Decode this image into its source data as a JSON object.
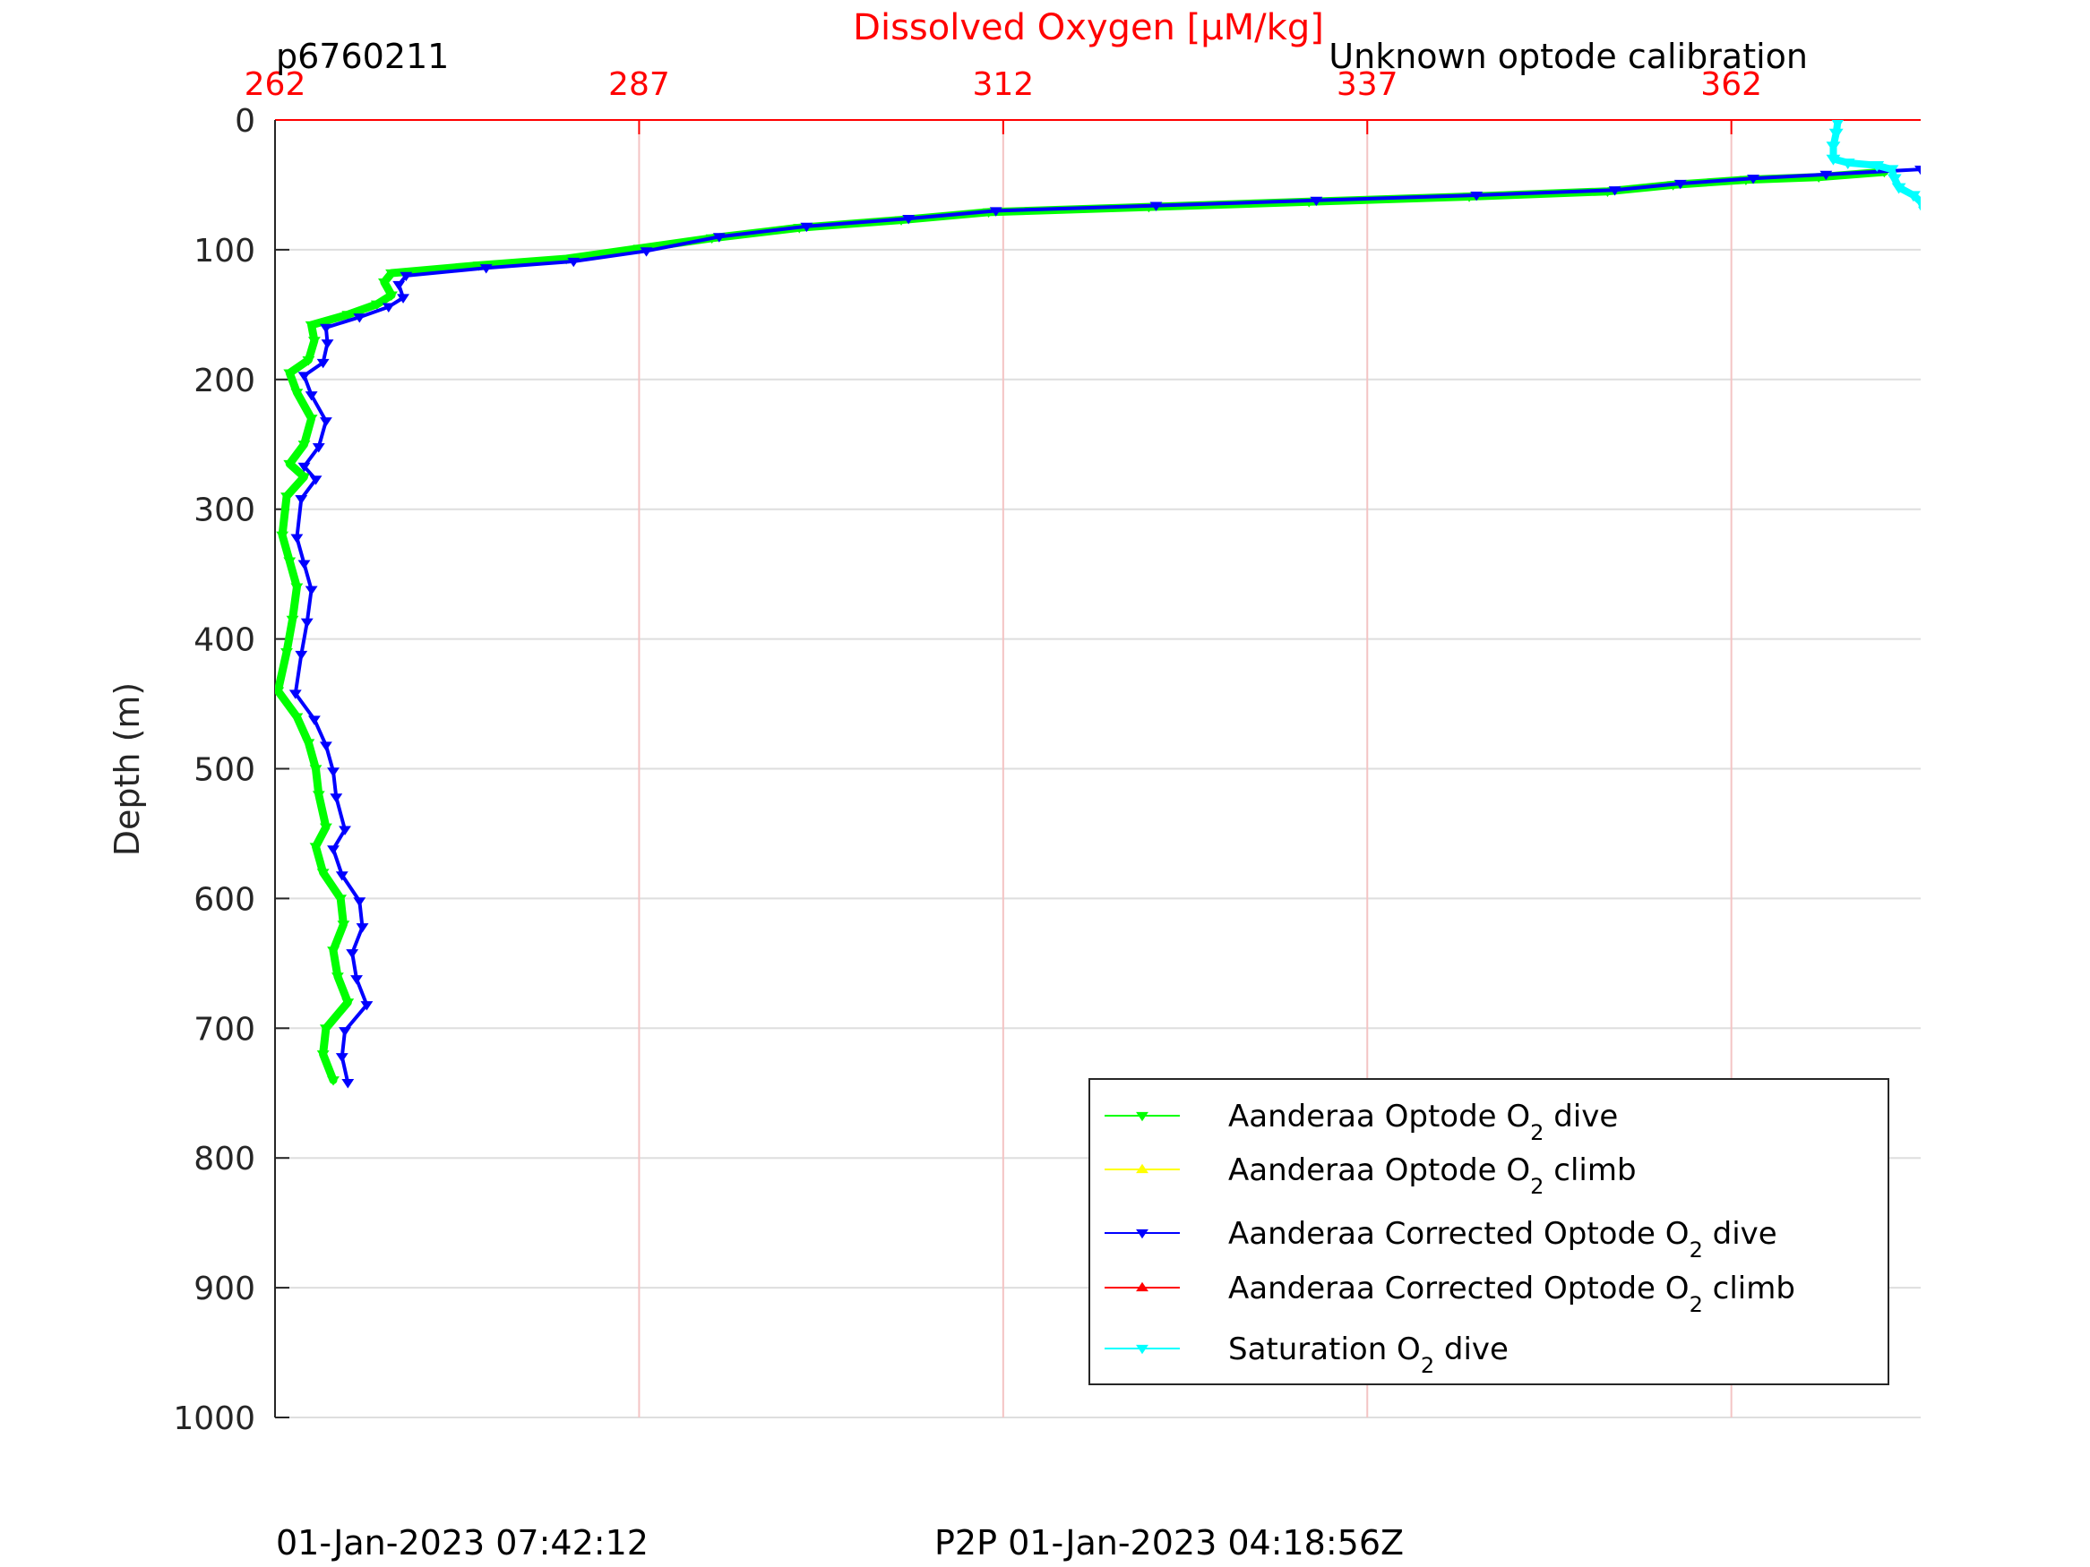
{
  "header": {
    "left": "p6760211",
    "right": "Unknown optode calibration"
  },
  "footer": {
    "left": "01-Jan-2023 07:42:12",
    "center": "P2P 01-Jan-2023 04:18:56Z"
  },
  "chart_data": {
    "type": "line",
    "title": "Dissolved Oxygen [μM/kg]",
    "ylabel": "Depth (m)",
    "xlim": [
      262,
      375
    ],
    "ylim": [
      0,
      1000
    ],
    "y_reversed": true,
    "x_axis_position": "top",
    "grid": true,
    "x_ticks": [
      262,
      287,
      312,
      337,
      362
    ],
    "y_ticks": [
      0,
      100,
      200,
      300,
      400,
      500,
      600,
      700,
      800,
      900,
      1000
    ],
    "legend_position": "bottom-right",
    "legend": [
      {
        "pre": "Aanderaa Optode O",
        "sub": "2",
        "post": " dive",
        "color": "#00ff00",
        "marker": "down"
      },
      {
        "pre": "Aanderaa Optode O",
        "sub": "2",
        "post": " climb",
        "color": "#ffff00",
        "marker": "up"
      },
      {
        "pre": "Aanderaa Corrected Optode O",
        "sub": "2",
        "post": " dive",
        "color": "#0000ff",
        "marker": "down"
      },
      {
        "pre": "Aanderaa Corrected Optode O",
        "sub": "2",
        "post": " climb",
        "color": "#ff0000",
        "marker": "up"
      },
      {
        "pre": "Saturation O",
        "sub": "2",
        "post": " dive",
        "color": "#00ffff",
        "marker": "down"
      }
    ],
    "series": [
      {
        "name": "Aanderaa Optode O2 dive",
        "color": "#00ff00",
        "marker": "down",
        "points": [
          [
            372.5,
            40
          ],
          [
            368.0,
            44
          ],
          [
            363.0,
            46
          ],
          [
            358.0,
            50
          ],
          [
            353.5,
            55
          ],
          [
            344.0,
            59
          ],
          [
            333.0,
            63
          ],
          [
            322.0,
            67
          ],
          [
            311.0,
            71
          ],
          [
            305.0,
            77
          ],
          [
            298.0,
            83
          ],
          [
            292.0,
            91
          ],
          [
            287.0,
            99
          ],
          [
            282.0,
            107
          ],
          [
            276.0,
            112
          ],
          [
            270.0,
            118
          ],
          [
            269.5,
            125
          ],
          [
            270.0,
            135
          ],
          [
            269.0,
            142
          ],
          [
            267.0,
            150
          ],
          [
            264.5,
            158
          ],
          [
            264.7,
            170
          ],
          [
            264.3,
            185
          ],
          [
            263.0,
            195
          ],
          [
            263.5,
            210
          ],
          [
            264.5,
            230
          ],
          [
            264.0,
            250
          ],
          [
            263.0,
            265
          ],
          [
            264.0,
            275
          ],
          [
            262.8,
            290
          ],
          [
            262.5,
            320
          ],
          [
            263.0,
            340
          ],
          [
            263.5,
            360
          ],
          [
            263.2,
            385
          ],
          [
            262.8,
            410
          ],
          [
            262.2,
            440
          ],
          [
            263.5,
            460
          ],
          [
            264.3,
            480
          ],
          [
            264.8,
            500
          ],
          [
            265.0,
            520
          ],
          [
            265.5,
            545
          ],
          [
            264.8,
            560
          ],
          [
            265.3,
            580
          ],
          [
            266.5,
            600
          ],
          [
            266.7,
            620
          ],
          [
            266.0,
            640
          ],
          [
            266.3,
            660
          ],
          [
            267.0,
            680
          ],
          [
            265.5,
            700
          ],
          [
            265.3,
            720
          ],
          [
            266.0,
            740
          ]
        ]
      },
      {
        "name": "Aanderaa Optode O2 climb",
        "color": "#ffff00",
        "marker": "up",
        "points": []
      },
      {
        "name": "Aanderaa Corrected Optode O2 dive",
        "color": "#0000ff",
        "marker": "down",
        "points": [
          [
            375.0,
            38
          ],
          [
            368.5,
            42
          ],
          [
            363.5,
            45
          ],
          [
            358.5,
            49
          ],
          [
            354.0,
            54
          ],
          [
            344.5,
            58
          ],
          [
            333.5,
            62
          ],
          [
            322.5,
            66
          ],
          [
            311.5,
            70
          ],
          [
            305.5,
            76
          ],
          [
            298.5,
            82
          ],
          [
            292.5,
            90
          ],
          [
            287.5,
            101
          ],
          [
            282.5,
            109
          ],
          [
            276.5,
            114
          ],
          [
            271.0,
            120
          ],
          [
            270.5,
            127
          ],
          [
            270.8,
            137
          ],
          [
            269.8,
            144
          ],
          [
            267.8,
            152
          ],
          [
            265.5,
            160
          ],
          [
            265.6,
            172
          ],
          [
            265.3,
            187
          ],
          [
            264.0,
            197
          ],
          [
            264.5,
            212
          ],
          [
            265.5,
            232
          ],
          [
            265.0,
            252
          ],
          [
            264.0,
            267
          ],
          [
            264.8,
            277
          ],
          [
            263.8,
            292
          ],
          [
            263.5,
            322
          ],
          [
            264.0,
            342
          ],
          [
            264.5,
            362
          ],
          [
            264.2,
            387
          ],
          [
            263.8,
            412
          ],
          [
            263.4,
            442
          ],
          [
            264.7,
            462
          ],
          [
            265.5,
            482
          ],
          [
            266.0,
            502
          ],
          [
            266.2,
            522
          ],
          [
            266.8,
            547
          ],
          [
            266.0,
            562
          ],
          [
            266.6,
            582
          ],
          [
            267.8,
            602
          ],
          [
            268.0,
            622
          ],
          [
            267.3,
            642
          ],
          [
            267.6,
            662
          ],
          [
            268.3,
            682
          ],
          [
            266.8,
            702
          ],
          [
            266.6,
            722
          ],
          [
            267.0,
            742
          ]
        ]
      },
      {
        "name": "Aanderaa Corrected Optode O2 climb",
        "color": "#ff0000",
        "marker": "up",
        "points": []
      },
      {
        "name": "Saturation O2 dive",
        "color": "#00ffff",
        "marker": "down",
        "points": [
          [
            369.3,
            2
          ],
          [
            369.2,
            10
          ],
          [
            369.0,
            20
          ],
          [
            369.0,
            30
          ],
          [
            370.0,
            33
          ],
          [
            372.0,
            35
          ],
          [
            373.0,
            38
          ],
          [
            373.2,
            45
          ],
          [
            373.5,
            52
          ],
          [
            374.5,
            58
          ],
          [
            375.0,
            63
          ],
          [
            375.3,
            70
          ]
        ]
      }
    ]
  }
}
